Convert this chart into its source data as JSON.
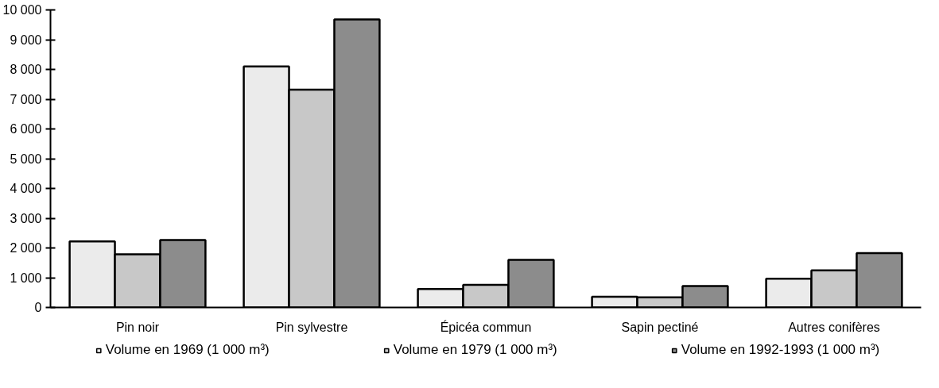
{
  "chart_data": {
    "type": "bar",
    "categories": [
      "Pin noir",
      "Pin sylvestre",
      "Épicéa commun",
      "Sapin pectiné",
      "Autres conifères"
    ],
    "series": [
      {
        "name": "Volume en 1969 (1 000 m³)",
        "color": "#ebebeb",
        "values": [
          2220,
          8100,
          620,
          360,
          970
        ]
      },
      {
        "name": "Volume en 1979 (1 000 m³)",
        "color": "#c8c8c8",
        "values": [
          1790,
          7320,
          760,
          340,
          1250
        ]
      },
      {
        "name": "Volume en 1992-1993 (1 000 m³)",
        "color": "#8c8c8c",
        "values": [
          2270,
          9680,
          1600,
          720,
          1830
        ]
      }
    ],
    "ylim": [
      0,
      10000
    ],
    "yticks": [
      0,
      {
        "value": 1000,
        "label": "1 000"
      },
      {
        "value": 2000,
        "label": "2 000"
      },
      {
        "value": 3000,
        "label": "3 000"
      },
      {
        "value": 4000,
        "label": "4 000"
      },
      {
        "value": 5000,
        "label": "5 000"
      },
      {
        "value": 6000,
        "label": "6 000"
      },
      {
        "value": 7000,
        "label": "7 000"
      },
      {
        "value": 8000,
        "label": "8 000"
      },
      {
        "value": 9000,
        "label": "9 000"
      },
      {
        "value": 10000,
        "label": "10 000"
      }
    ],
    "grid": false,
    "legend": "bottom"
  }
}
